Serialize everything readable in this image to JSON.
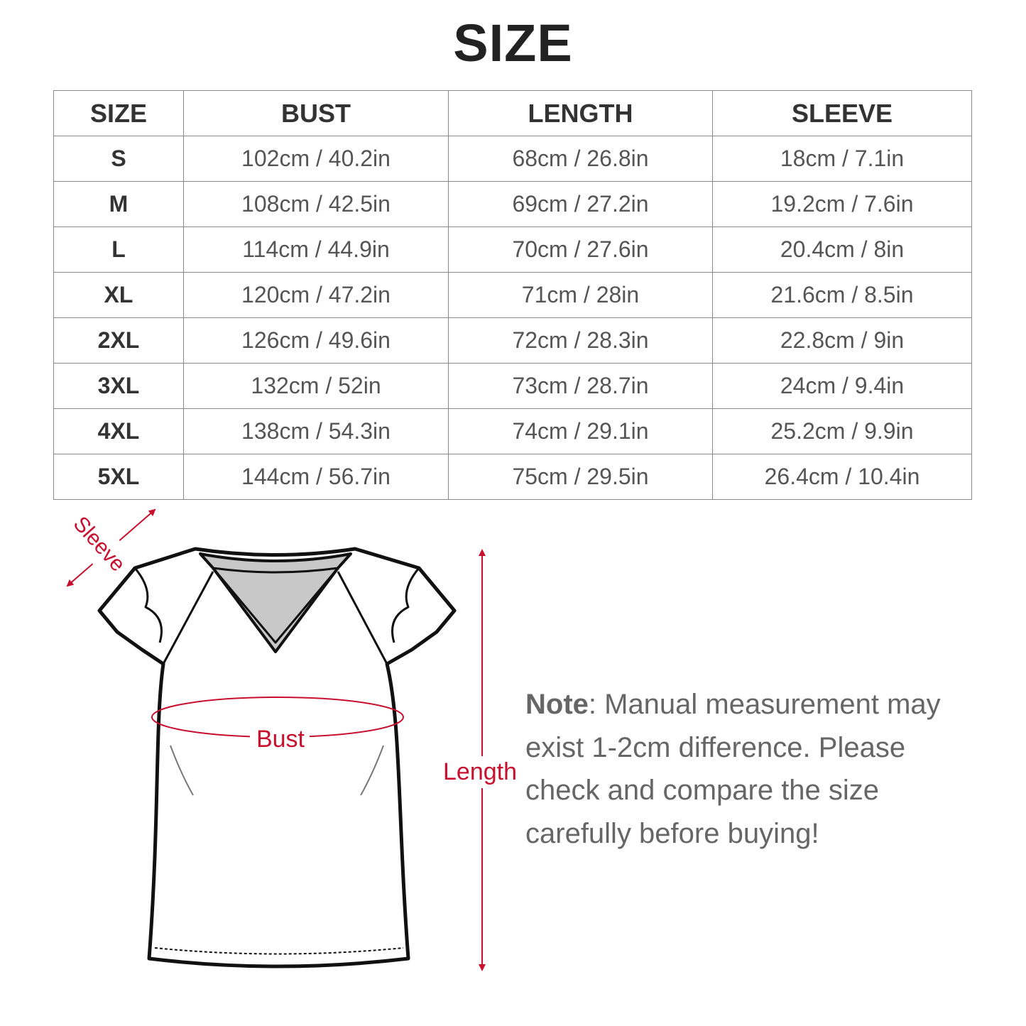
{
  "title": "SIZE",
  "table": {
    "headers": [
      "SIZE",
      "BUST",
      "LENGTH",
      "SLEEVE"
    ],
    "rows": [
      [
        "S",
        "102cm / 40.2in",
        "68cm / 26.8in",
        "18cm / 7.1in"
      ],
      [
        "M",
        "108cm / 42.5in",
        "69cm / 27.2in",
        "19.2cm / 7.6in"
      ],
      [
        "L",
        "114cm / 44.9in",
        "70cm / 27.6in",
        "20.4cm / 8in"
      ],
      [
        "XL",
        "120cm / 47.2in",
        "71cm / 28in",
        "21.6cm / 8.5in"
      ],
      [
        "2XL",
        "126cm / 49.6in",
        "72cm / 28.3in",
        "22.8cm / 9in"
      ],
      [
        "3XL",
        "132cm / 52in",
        "73cm / 28.7in",
        "24cm / 9.4in"
      ],
      [
        "4XL",
        "138cm / 54.3in",
        "74cm / 29.1in",
        "25.2cm / 9.9in"
      ],
      [
        "5XL",
        "144cm / 56.7in",
        "75cm / 29.5in",
        "26.4cm / 10.4in"
      ]
    ]
  },
  "diagram": {
    "sleeve_label": "Sleeve",
    "bust_label": "Bust",
    "length_label": "Length",
    "accent_color": "#c8102e"
  },
  "note": {
    "label": "Note",
    "text": ": Manual measurement may exist 1-2cm difference. Please check and compare the size carefully before buying!"
  }
}
